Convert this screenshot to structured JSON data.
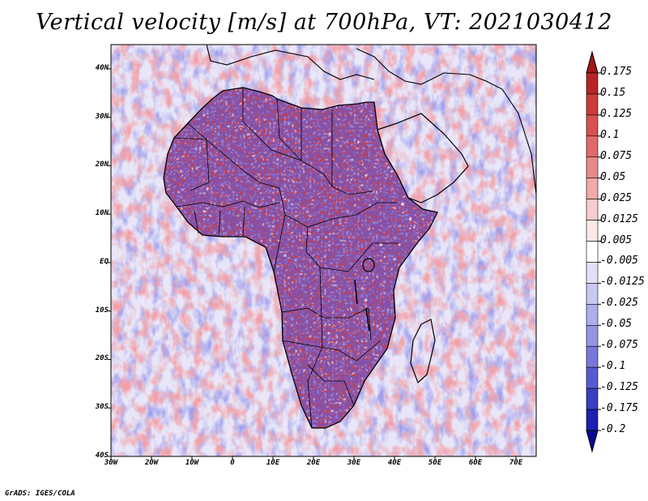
{
  "title": "Vertical velocity [m/s] at 700hPa, VT: 2021030412",
  "credit": "GrADS: IGES/COLA",
  "map": {
    "variable": "Vertical velocity",
    "units": "m/s",
    "level": "700hPa",
    "valid_time": "2021030412",
    "lon_range": [
      -30,
      75
    ],
    "lat_range": [
      -40,
      45
    ],
    "lat_labels": [
      "40N",
      "30N",
      "20N",
      "10N",
      "EQ",
      "10S",
      "20S",
      "30S",
      "40S"
    ],
    "lat_values": [
      40,
      30,
      20,
      10,
      0,
      -10,
      -20,
      -30,
      -40
    ],
    "lon_labels": [
      "30W",
      "20W",
      "10W",
      "0",
      "10E",
      "20E",
      "30E",
      "40E",
      "50E",
      "60E",
      "70E"
    ],
    "lon_values": [
      -30,
      -20,
      -10,
      0,
      10,
      20,
      30,
      40,
      50,
      60,
      70
    ]
  },
  "colorbar": {
    "labels": [
      "0.175",
      "0.15",
      "0.125",
      "0.1",
      "0.075",
      "0.05",
      "0.025",
      "0.0125",
      "0.005",
      "-0.005",
      "-0.0125",
      "-0.025",
      "-0.05",
      "-0.075",
      "-0.1",
      "-0.125",
      "-0.175",
      "-0.2"
    ],
    "colors": [
      "#a01818",
      "#b82424",
      "#cc3a3a",
      "#d85050",
      "#e06a6a",
      "#e88a8a",
      "#f0aaaa",
      "#f6cccc",
      "#fbe8e8",
      "#ffffff",
      "#e0e0f8",
      "#c8c8f0",
      "#aeaeec",
      "#9494e4",
      "#7878da",
      "#5a5ad0",
      "#3c3cc0",
      "#1e1eb0",
      "#0a0a96"
    ]
  }
}
